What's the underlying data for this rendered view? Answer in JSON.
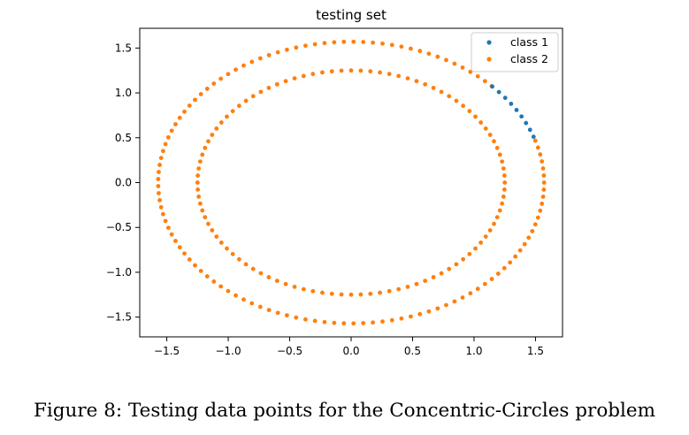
{
  "chart_data": {
    "type": "scatter",
    "title": "testing set",
    "xlabel": "",
    "ylabel": "",
    "xlim": [
      -1.72,
      1.72
    ],
    "ylim": [
      -1.72,
      1.72
    ],
    "xticks": [
      -1.5,
      -1.0,
      -0.5,
      0.0,
      0.5,
      1.0,
      1.5
    ],
    "yticks": [
      -1.5,
      -1.0,
      -0.5,
      0.0,
      0.5,
      1.0,
      1.5
    ],
    "xtick_labels": [
      "−1.5",
      "−1.0",
      "−0.5",
      "0.0",
      "0.5",
      "1.0",
      "1.5"
    ],
    "ytick_labels": [
      "−1.5",
      "−1.0",
      "−0.5",
      "0.0",
      "0.5",
      "1.0",
      "1.5"
    ],
    "grid": false,
    "legend_position": "top-right",
    "series": [
      {
        "name": "class 1",
        "color": "#1f77b4",
        "description": "outer circle radius 1.57, arc from ~19° to ~43°",
        "radius": 1.57,
        "start_deg": 19,
        "end_deg": 43,
        "count": 9
      },
      {
        "name": "class 2",
        "color": "#ff7f0e",
        "description": "inner circle radius 1.25 (full) and outer circle radius 1.57 (excluding class 1 arc)",
        "rings": [
          {
            "radius": 1.25,
            "count": 100,
            "exclude": []
          },
          {
            "radius": 1.57,
            "count": 125,
            "exclude": [
              [
                19,
                43
              ]
            ]
          }
        ]
      }
    ]
  },
  "caption": "Figure 8: Testing data points for the Concentric-Circles problem"
}
